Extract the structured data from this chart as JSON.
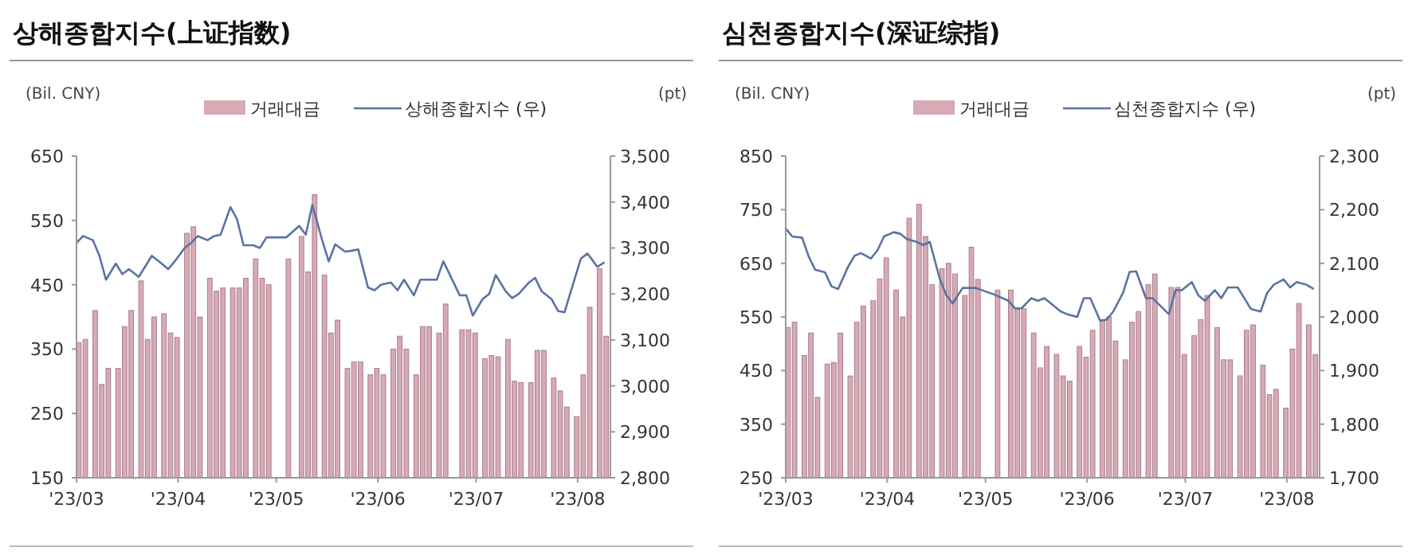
{
  "chart_data": [
    {
      "type": "bar",
      "title": "상해종합지수(上证指数)",
      "ylabel": "(Bil. CNY)",
      "y2label": "(pt)",
      "legend": "top",
      "grid": false,
      "x": [
        "2023-03-01",
        "2023-03-03",
        "2023-03-06",
        "2023-03-08",
        "2023-03-10",
        "2023-03-13",
        "2023-03-15",
        "2023-03-17",
        "2023-03-20",
        "2023-03-22",
        "2023-03-24",
        "2023-03-27",
        "2023-03-29",
        "2023-03-31",
        "2023-04-03",
        "2023-04-05",
        "2023-04-07",
        "2023-04-10",
        "2023-04-12",
        "2023-04-14",
        "2023-04-17",
        "2023-04-19",
        "2023-04-21",
        "2023-04-24",
        "2023-04-26",
        "2023-04-28",
        "2023-05-04",
        "2023-05-08",
        "2023-05-10",
        "2023-05-12",
        "2023-05-15",
        "2023-05-17",
        "2023-05-19",
        "2023-05-22",
        "2023-05-24",
        "2023-05-26",
        "2023-05-29",
        "2023-05-31",
        "2023-06-02",
        "2023-06-05",
        "2023-06-07",
        "2023-06-09",
        "2023-06-12",
        "2023-06-14",
        "2023-06-16",
        "2023-06-19",
        "2023-06-21",
        "2023-06-26",
        "2023-06-28",
        "2023-06-30",
        "2023-07-03",
        "2023-07-05",
        "2023-07-07",
        "2023-07-10",
        "2023-07-12",
        "2023-07-14",
        "2023-07-17",
        "2023-07-19",
        "2023-07-21",
        "2023-07-24",
        "2023-07-26",
        "2023-07-28",
        "2023-07-31",
        "2023-08-02",
        "2023-08-04",
        "2023-08-07",
        "2023-08-09"
      ],
      "xlim": [
        "2023-03-01",
        "2023-08-11"
      ],
      "xticks": [
        {
          "value": "2023-03-01",
          "label": "'23/03"
        },
        {
          "value": "2023-04-01",
          "label": "'23/04"
        },
        {
          "value": "2023-05-01",
          "label": "'23/05"
        },
        {
          "value": "2023-06-01",
          "label": "'23/06"
        },
        {
          "value": "2023-07-01",
          "label": "'23/07"
        },
        {
          "value": "2023-08-01",
          "label": "'23/08"
        }
      ],
      "ylim": [
        150,
        650
      ],
      "yticks": [
        150,
        250,
        350,
        450,
        550,
        650
      ],
      "y2lim": [
        2800,
        3500
      ],
      "y2ticks": [
        {
          "value": 2800,
          "label": "2,800"
        },
        {
          "value": 2900,
          "label": "2,900"
        },
        {
          "value": 3000,
          "label": "3,000"
        },
        {
          "value": 3100,
          "label": "3,100"
        },
        {
          "value": 3200,
          "label": "3,200"
        },
        {
          "value": 3300,
          "label": "3,300"
        },
        {
          "value": 3400,
          "label": "3,400"
        },
        {
          "value": 3500,
          "label": "3,500"
        }
      ],
      "series": [
        {
          "name": "거래대금",
          "color": "#d9a9b6",
          "values": [
            360,
            365,
            410,
            295,
            320,
            320,
            385,
            410,
            456,
            365,
            400,
            405,
            375,
            368,
            530,
            540,
            400,
            460,
            440,
            445,
            445,
            445,
            460,
            490,
            460,
            450,
            490,
            525,
            470,
            590,
            465,
            375,
            395,
            320,
            330,
            330,
            310,
            320,
            310,
            350,
            370,
            350,
            310,
            385,
            385,
            375,
            420,
            380,
            380,
            375,
            335,
            340,
            338,
            365,
            300,
            298,
            298,
            348,
            348,
            305,
            285,
            260,
            245,
            310,
            415,
            475,
            370
          ]
        },
        {
          "name": "상해종합지수 (우)",
          "type": "line",
          "axis": "y2",
          "color": "#5a73a3",
          "values": [
            3311,
            3326,
            3317,
            3283,
            3231,
            3266,
            3243,
            3254,
            3237,
            3260,
            3283,
            3266,
            3254,
            3271,
            3300,
            3311,
            3326,
            3317,
            3326,
            3329,
            3389,
            3363,
            3306,
            3306,
            3300,
            3323,
            3323,
            3348,
            3329,
            3394,
            3317,
            3271,
            3308,
            3292,
            3294,
            3297,
            3214,
            3208,
            3220,
            3225,
            3208,
            3231,
            3197,
            3231,
            3231,
            3231,
            3271,
            3197,
            3197,
            3153,
            3189,
            3200,
            3241,
            3206,
            3191,
            3200,
            3224,
            3235,
            3206,
            3189,
            3163,
            3160,
            3231,
            3277,
            3288,
            3259,
            3268
          ]
        }
      ]
    },
    {
      "type": "bar",
      "title": "심천종합지수(深证综指)",
      "ylabel": "(Bil. CNY)",
      "y2label": "(pt)",
      "legend": "top",
      "grid": false,
      "x": [
        "2023-03-01",
        "2023-03-03",
        "2023-03-06",
        "2023-03-08",
        "2023-03-10",
        "2023-03-13",
        "2023-03-15",
        "2023-03-17",
        "2023-03-20",
        "2023-03-22",
        "2023-03-24",
        "2023-03-27",
        "2023-03-29",
        "2023-03-31",
        "2023-04-03",
        "2023-04-05",
        "2023-04-07",
        "2023-04-10",
        "2023-04-12",
        "2023-04-14",
        "2023-04-17",
        "2023-04-19",
        "2023-04-21",
        "2023-04-24",
        "2023-04-26",
        "2023-04-28",
        "2023-05-04",
        "2023-05-08",
        "2023-05-10",
        "2023-05-12",
        "2023-05-15",
        "2023-05-17",
        "2023-05-19",
        "2023-05-22",
        "2023-05-24",
        "2023-05-26",
        "2023-05-29",
        "2023-05-31",
        "2023-06-02",
        "2023-06-05",
        "2023-06-07",
        "2023-06-09",
        "2023-06-12",
        "2023-06-14",
        "2023-06-16",
        "2023-06-19",
        "2023-06-21",
        "2023-06-26",
        "2023-06-28",
        "2023-06-30",
        "2023-07-03",
        "2023-07-05",
        "2023-07-07",
        "2023-07-10",
        "2023-07-12",
        "2023-07-14",
        "2023-07-17",
        "2023-07-19",
        "2023-07-21",
        "2023-07-24",
        "2023-07-26",
        "2023-07-28",
        "2023-07-31",
        "2023-08-02",
        "2023-08-04",
        "2023-08-07",
        "2023-08-09"
      ],
      "xlim": [
        "2023-03-01",
        "2023-08-11"
      ],
      "xticks": [
        {
          "value": "2023-03-01",
          "label": "'23/03"
        },
        {
          "value": "2023-04-01",
          "label": "'23/04"
        },
        {
          "value": "2023-05-01",
          "label": "'23/05"
        },
        {
          "value": "2023-06-01",
          "label": "'23/06"
        },
        {
          "value": "2023-07-01",
          "label": "'23/07"
        },
        {
          "value": "2023-08-01",
          "label": "'23/08"
        }
      ],
      "ylim": [
        250,
        850
      ],
      "yticks": [
        250,
        350,
        450,
        550,
        650,
        750,
        850
      ],
      "y2lim": [
        1700,
        2300
      ],
      "y2ticks": [
        {
          "value": 1700,
          "label": "1,700"
        },
        {
          "value": 1800,
          "label": "1,800"
        },
        {
          "value": 1900,
          "label": "1,900"
        },
        {
          "value": 2000,
          "label": "2,000"
        },
        {
          "value": 2100,
          "label": "2,100"
        },
        {
          "value": 2200,
          "label": "2,200"
        },
        {
          "value": 2300,
          "label": "2,300"
        }
      ],
      "series": [
        {
          "name": "거래대금",
          "color": "#d9a9b6",
          "values": [
            530,
            540,
            478,
            520,
            400,
            462,
            465,
            520,
            440,
            540,
            570,
            580,
            621,
            660,
            600,
            550,
            734,
            760,
            700,
            610,
            640,
            650,
            630,
            590,
            680,
            620,
            600,
            600,
            565,
            565,
            520,
            455,
            495,
            480,
            440,
            430,
            495,
            475,
            525,
            545,
            550,
            505,
            470,
            540,
            560,
            610,
            630,
            605,
            605,
            480,
            515,
            545,
            590,
            530,
            470,
            470,
            440,
            525,
            535,
            460,
            405,
            415,
            380,
            490,
            575,
            535,
            480
          ]
        },
        {
          "name": "심천종합지수 (우)",
          "type": "line",
          "axis": "y2",
          "color": "#5a73a3",
          "values": [
            2165,
            2150,
            2148,
            2113,
            2088,
            2083,
            2057,
            2052,
            2093,
            2114,
            2119,
            2109,
            2124,
            2150,
            2158,
            2155,
            2145,
            2140,
            2134,
            2140,
            2072,
            2041,
            2025,
            2054,
            2054,
            2054,
            2041,
            2030,
            2016,
            2016,
            2035,
            2030,
            2035,
            2020,
            2010,
            2005,
            2000,
            2035,
            2035,
            1993,
            1995,
            2010,
            2045,
            2084,
            2085,
            2035,
            2035,
            2005,
            2050,
            2050,
            2065,
            2040,
            2030,
            2050,
            2035,
            2055,
            2055,
            2035,
            2015,
            2010,
            2045,
            2060,
            2070,
            2055,
            2065,
            2060,
            2053
          ]
        }
      ]
    }
  ]
}
